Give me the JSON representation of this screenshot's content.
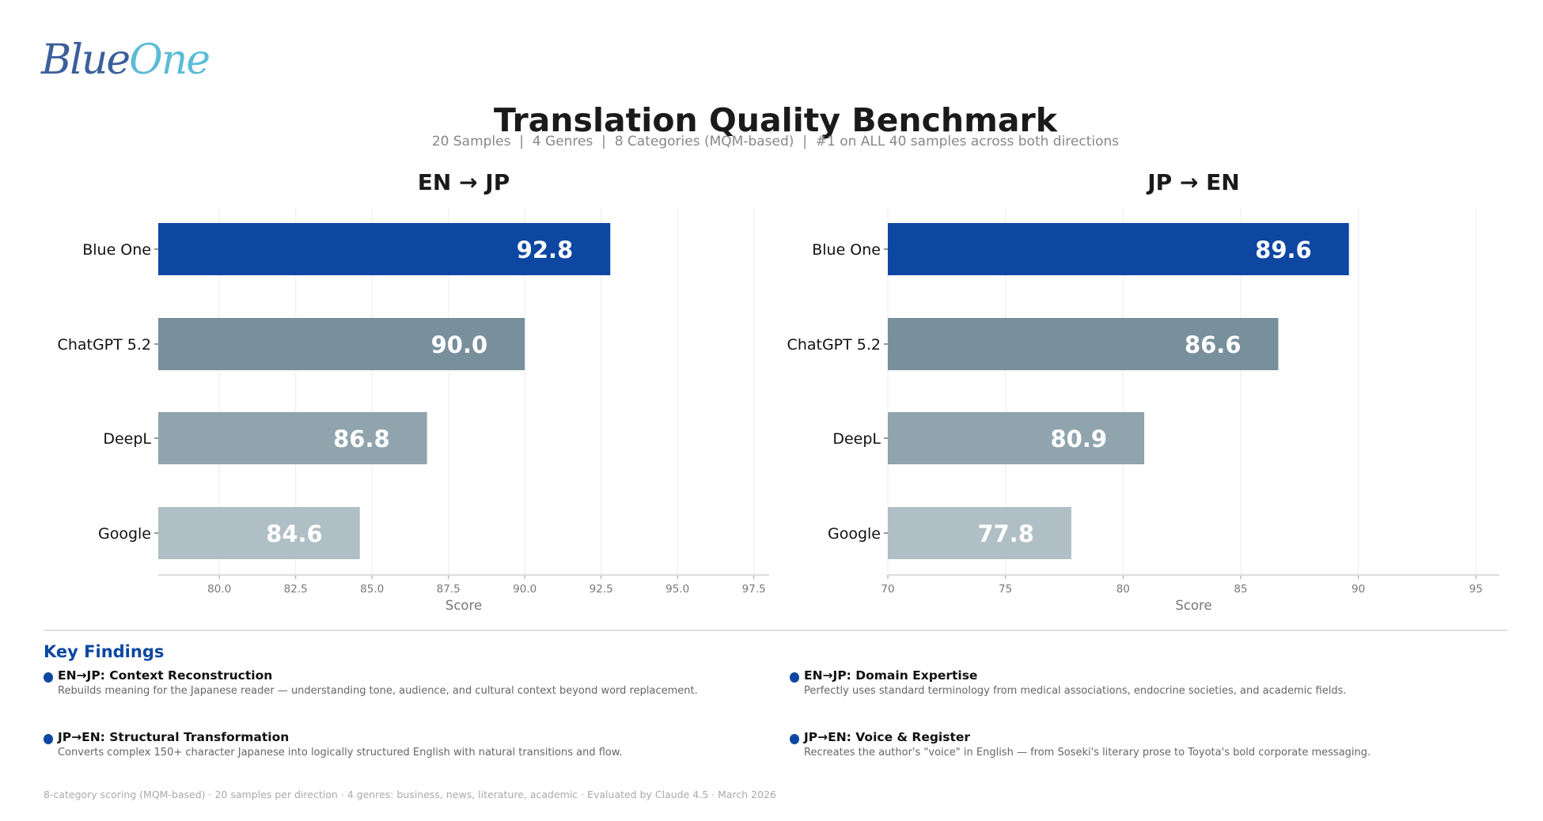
{
  "logo": {
    "part1": "Blue",
    "part2": "One"
  },
  "title": "Translation Quality Benchmark",
  "subtitle": "20 Samples  |  4 Genres  |  8 Categories (MQM-based)  |  #1 on ALL 40 samples across both directions",
  "chart_data": [
    {
      "type": "bar",
      "orientation": "horizontal",
      "title": "EN → JP",
      "xlabel": "Score",
      "categories": [
        "Blue One",
        "ChatGPT 5.2",
        "DeepL",
        "Google"
      ],
      "values": [
        92.8,
        90.0,
        86.8,
        84.6
      ],
      "value_labels": [
        "92.8",
        "90.0",
        "86.8",
        "84.6"
      ],
      "colors": [
        "#0d47a1",
        "#78909c",
        "#90a4ae",
        "#b0bec5"
      ],
      "xlim": [
        78,
        98
      ],
      "xticks": [
        "80.0",
        "82.5",
        "85.0",
        "87.5",
        "90.0",
        "92.5",
        "95.0",
        "97.5"
      ],
      "grid": "vertical"
    },
    {
      "type": "bar",
      "orientation": "horizontal",
      "title": "JP → EN",
      "xlabel": "Score",
      "categories": [
        "Blue One",
        "ChatGPT 5.2",
        "DeepL",
        "Google"
      ],
      "values": [
        89.6,
        86.6,
        80.9,
        77.8
      ],
      "value_labels": [
        "89.6",
        "86.6",
        "80.9",
        "77.8"
      ],
      "colors": [
        "#0d47a1",
        "#78909c",
        "#90a4ae",
        "#b0bec5"
      ],
      "xlim": [
        70,
        96
      ],
      "xticks": [
        "70",
        "75",
        "80",
        "85",
        "90",
        "95"
      ],
      "grid": "vertical"
    }
  ],
  "key_findings": {
    "heading": "Key Findings",
    "items": [
      {
        "title": "EN→JP: Context Reconstruction",
        "desc": "Rebuilds meaning for the Japanese reader — understanding tone, audience, and cultural context beyond word replacement."
      },
      {
        "title": "EN→JP: Domain Expertise",
        "desc": "Perfectly uses standard terminology from medical associations, endocrine societies, and academic fields."
      },
      {
        "title": "JP→EN: Structural Transformation",
        "desc": "Converts complex 150+ character Japanese into logically structured English with natural transitions and flow."
      },
      {
        "title": "JP→EN: Voice & Register",
        "desc": "Recreates the author's \"voice\" in English — from Soseki's literary prose to Toyota's bold corporate messaging."
      }
    ]
  },
  "footer": "8-category scoring (MQM-based) · 20 samples per direction · 4 genres: business, news, literature, academic · Evaluated by Claude 4.5 · March 2026"
}
